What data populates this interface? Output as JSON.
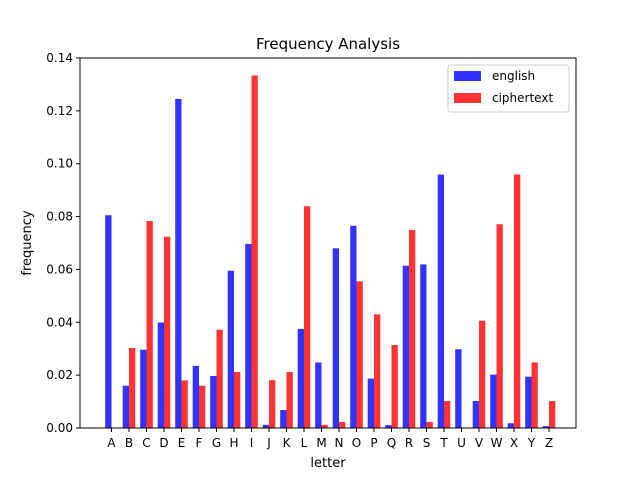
{
  "chart_data": {
    "type": "bar",
    "title": "Frequency Analysis",
    "xlabel": "letter",
    "ylabel": "frequency",
    "ylim": [
      0,
      0.14
    ],
    "yticks": [
      "0.00",
      "0.02",
      "0.04",
      "0.06",
      "0.08",
      "0.10",
      "0.12",
      "0.14"
    ],
    "grid": false,
    "legend_position": "top-right",
    "categories": [
      "A",
      "B",
      "C",
      "D",
      "E",
      "F",
      "G",
      "H",
      "I",
      "J",
      "K",
      "L",
      "M",
      "N",
      "O",
      "P",
      "Q",
      "R",
      "S",
      "T",
      "U",
      "V",
      "W",
      "X",
      "Y",
      "Z"
    ],
    "series": [
      {
        "name": "english",
        "color": "#3333ff",
        "values": [
          0.0805,
          0.016,
          0.0296,
          0.0399,
          0.1245,
          0.0235,
          0.0197,
          0.0595,
          0.0696,
          0.0012,
          0.0068,
          0.0375,
          0.0248,
          0.068,
          0.0765,
          0.0187,
          0.0011,
          0.0614,
          0.0619,
          0.0959,
          0.0298,
          0.0102,
          0.0202,
          0.0018,
          0.0194,
          0.0007
        ]
      },
      {
        "name": "ciphertext",
        "color": "#ff3333",
        "values": [
          0.0,
          0.0303,
          0.0783,
          0.0724,
          0.018,
          0.016,
          0.0372,
          0.0212,
          0.1334,
          0.0181,
          0.0212,
          0.0839,
          0.0012,
          0.0023,
          0.0555,
          0.043,
          0.0314,
          0.0749,
          0.0023,
          0.0102,
          0.0,
          0.0406,
          0.0771,
          0.0959,
          0.0248,
          0.0102
        ]
      }
    ]
  }
}
